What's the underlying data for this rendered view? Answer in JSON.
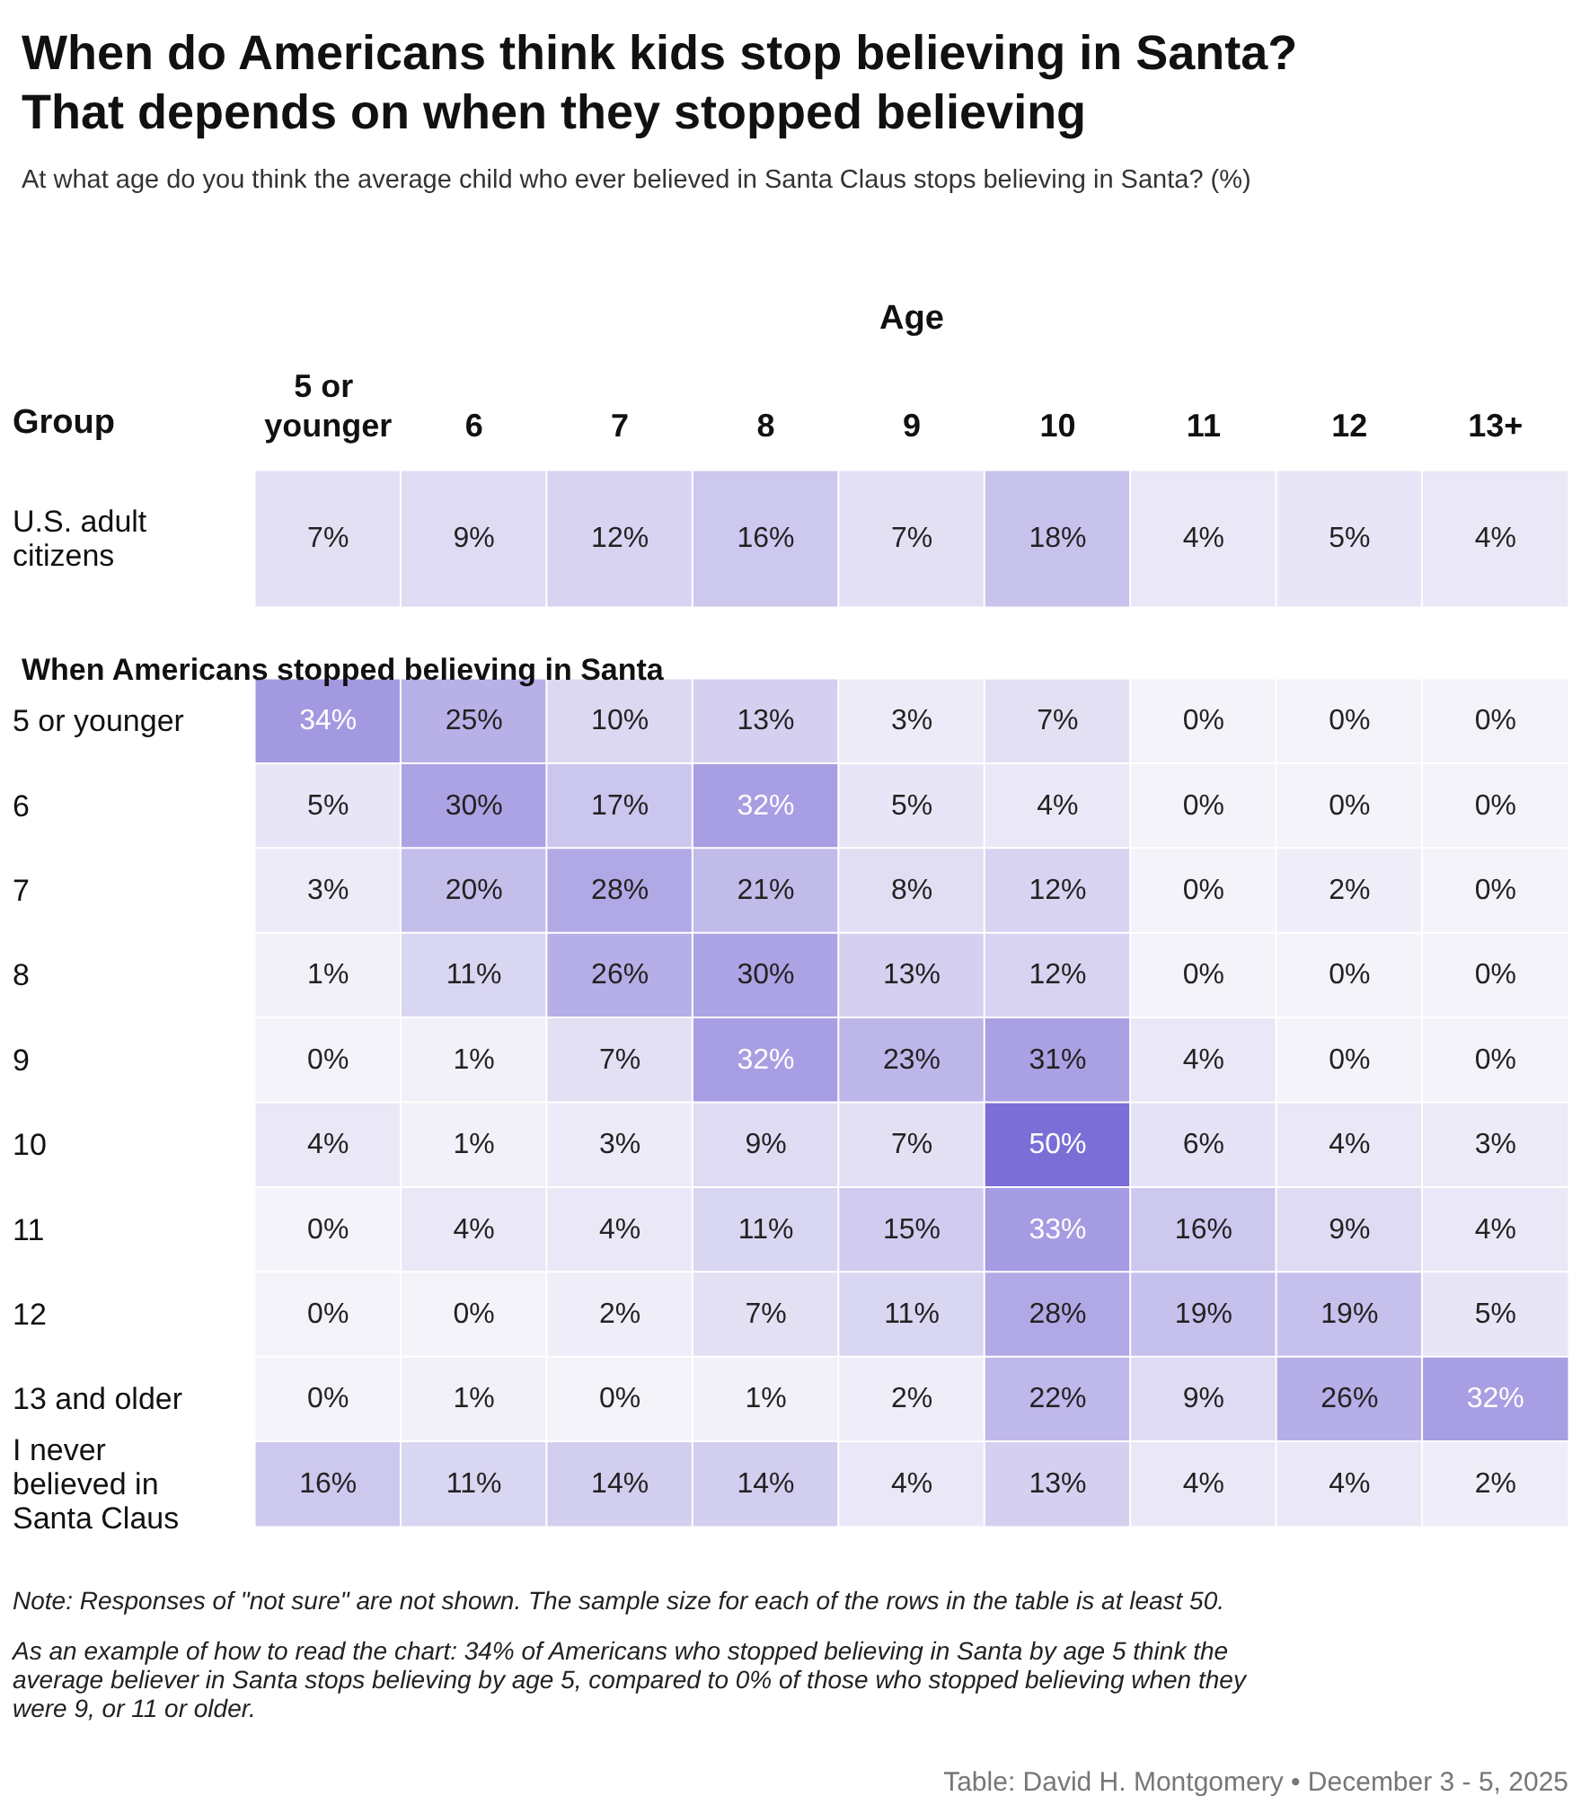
{
  "chart_data": [
    {
      "type": "heatmap",
      "title": "When do Americans think kids stop believing in Santa? That depends on when they stopped believing",
      "subtitle": "At what age do you think the average child who ever believed in Santa Claus stops believing in Santa? (%)",
      "xlabel": "Age",
      "ylabel": "Group",
      "categories": [
        "5 or younger",
        "6",
        "7",
        "8",
        "9",
        "10",
        "11",
        "12",
        "13+"
      ],
      "y_categories": [
        "U.S. adult citizens"
      ],
      "cells": [
        [
          7,
          9,
          12,
          16,
          7,
          18,
          4,
          5,
          4
        ]
      ],
      "cell_labels": [
        [
          "7%",
          "9%",
          "12%",
          "16%",
          "7%",
          "18%",
          "4%",
          "5%",
          "4%"
        ]
      ]
    },
    {
      "type": "heatmap",
      "title": "When Americans stopped believing in Santa",
      "categories": [
        "5 or younger",
        "6",
        "7",
        "8",
        "9",
        "10",
        "11",
        "12",
        "13+"
      ],
      "tick_labels": "y",
      "y_categories": [
        "5 or younger",
        "6",
        "7",
        "8",
        "9",
        "10",
        "11",
        "12",
        "13 and older",
        "I never believed in Santa Claus"
      ],
      "cells": [
        [
          34,
          25,
          10,
          13,
          3,
          7,
          0,
          0,
          0
        ],
        [
          5,
          30,
          17,
          32,
          5,
          4,
          0,
          0,
          0
        ],
        [
          3,
          20,
          28,
          21,
          8,
          12,
          0,
          2,
          0
        ],
        [
          1,
          11,
          26,
          30,
          13,
          12,
          0,
          0,
          0
        ],
        [
          0,
          1,
          7,
          32,
          23,
          31,
          4,
          0,
          0
        ],
        [
          4,
          1,
          3,
          9,
          7,
          50,
          6,
          4,
          3
        ],
        [
          0,
          4,
          4,
          11,
          15,
          33,
          16,
          9,
          4
        ],
        [
          0,
          0,
          2,
          7,
          11,
          28,
          19,
          19,
          5
        ],
        [
          0,
          1,
          0,
          1,
          2,
          22,
          9,
          26,
          32
        ],
        [
          16,
          11,
          14,
          14,
          4,
          13,
          4,
          4,
          2
        ]
      ],
      "cell_labels": [
        [
          "34%",
          "25%",
          "10%",
          "13%",
          "3%",
          "7%",
          "0%",
          "0%",
          "0%"
        ],
        [
          "5%",
          "30%",
          "17%",
          "32%",
          "5%",
          "4%",
          "0%",
          "0%",
          "0%"
        ],
        [
          "3%",
          "20%",
          "28%",
          "21%",
          "8%",
          "12%",
          "0%",
          "2%",
          "0%"
        ],
        [
          "1%",
          "11%",
          "26%",
          "30%",
          "13%",
          "12%",
          "0%",
          "0%",
          "0%"
        ],
        [
          "0%",
          "1%",
          "7%",
          "32%",
          "23%",
          "31%",
          "4%",
          "0%",
          "0%"
        ],
        [
          "4%",
          "1%",
          "3%",
          "9%",
          "7%",
          "50%",
          "6%",
          "4%",
          "3%"
        ],
        [
          "0%",
          "4%",
          "4%",
          "11%",
          "15%",
          "33%",
          "16%",
          "9%",
          "4%"
        ],
        [
          "0%",
          "0%",
          "2%",
          "7%",
          "11%",
          "28%",
          "19%",
          "19%",
          "5%"
        ],
        [
          "0%",
          "1%",
          "0%",
          "1%",
          "2%",
          "22%",
          "9%",
          "26%",
          "32%"
        ],
        [
          "16%",
          "11%",
          "14%",
          "14%",
          "4%",
          "13%",
          "4%",
          "4%",
          "2%"
        ]
      ],
      "annotations": [
        "Note: Responses of \"not sure\" are not shown. The sample size for each of the rows in the table is at least 50.",
        "As an example of how to read the chart: 34% of Americans who stopped believing in Santa by age 5 think the average believer in Santa stops believing by age 5, compared to 0% of those who stopped believing when they were 9, or 11 or older.",
        "Table: David H. Montgomery • December 3 - 5, 2025"
      ]
    }
  ]
}
